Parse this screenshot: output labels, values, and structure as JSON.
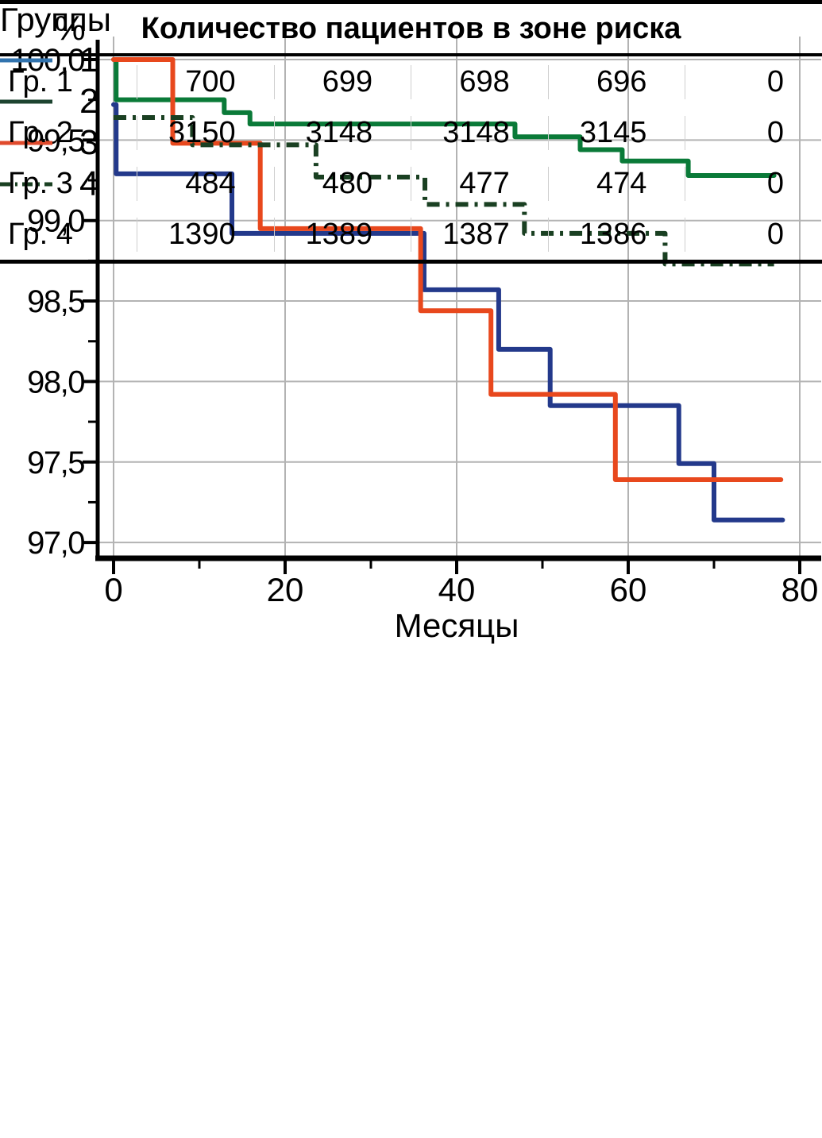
{
  "chart": {
    "ylabel_symbol": "%",
    "xlabel": "Месяцы",
    "x_ticks": [
      {
        "v": 0,
        "label": "0"
      },
      {
        "v": 20,
        "label": "20"
      },
      {
        "v": 40,
        "label": "40"
      },
      {
        "v": 60,
        "label": "60"
      },
      {
        "v": 80,
        "label": "80"
      }
    ],
    "x_minor": [
      10,
      30,
      50,
      70
    ],
    "y_ticks": [
      {
        "v": 100.0,
        "label": "100,0"
      },
      {
        "v": 99.5,
        "label": "99,5"
      },
      {
        "v": 99.0,
        "label": "99,0"
      },
      {
        "v": 98.5,
        "label": "98,5"
      },
      {
        "v": 98.0,
        "label": "98,0"
      },
      {
        "v": 97.5,
        "label": "97,5"
      },
      {
        "v": 97.0,
        "label": "97,0"
      }
    ],
    "y_minor": [
      99.75,
      99.25,
      98.75,
      98.25,
      97.75,
      97.25
    ],
    "grid_color": "#b3b3b3",
    "axis_color": "#000000"
  },
  "chart_data": {
    "type": "line",
    "subtype": "step-survival",
    "title": "",
    "xlabel": "Месяцы",
    "ylabel": "%",
    "xlim": [
      0,
      80
    ],
    "ylim": [
      97.0,
      100.0
    ],
    "grid": true,
    "legend_position": "bottom-left",
    "series": [
      {
        "name": "1",
        "color": "#23398B",
        "legend_color": "#3173AE",
        "style": "solid",
        "points": [
          [
            0,
            99.72
          ],
          [
            0.3,
            99.29
          ],
          [
            13.8,
            98.92
          ],
          [
            36.2,
            98.57
          ],
          [
            44.9,
            98.2
          ],
          [
            50.9,
            97.85
          ],
          [
            65.9,
            97.49
          ],
          [
            70.0,
            97.14
          ],
          [
            78.0,
            97.14
          ]
        ]
      },
      {
        "name": "2",
        "color": "#0A7A38",
        "legend_color": "#1D4430",
        "style": "solid",
        "points": [
          [
            0,
            100.0
          ],
          [
            0.3,
            99.75
          ],
          [
            12.9,
            99.67
          ],
          [
            15.9,
            99.6
          ],
          [
            46.8,
            99.52
          ],
          [
            54.4,
            99.44
          ],
          [
            59.3,
            99.37
          ],
          [
            67.0,
            99.28
          ],
          [
            77.0,
            99.28
          ]
        ]
      },
      {
        "name": "3",
        "color": "#E8481D",
        "legend_color": "#E04A2C",
        "style": "solid",
        "points": [
          [
            0,
            100.0
          ],
          [
            6.9,
            99.48
          ],
          [
            17.1,
            98.95
          ],
          [
            35.8,
            98.44
          ],
          [
            44.0,
            97.92
          ],
          [
            58.5,
            97.39
          ],
          [
            77.8,
            97.39
          ]
        ]
      },
      {
        "name": "4",
        "color": "#1A4022",
        "legend_color": "#1A4022",
        "style": "dashdot",
        "points": [
          [
            0,
            99.64
          ],
          [
            9.2,
            99.47
          ],
          [
            23.6,
            99.27
          ],
          [
            36.3,
            99.1
          ],
          [
            47.9,
            98.92
          ],
          [
            64.3,
            98.73
          ],
          [
            77.0,
            98.73
          ]
        ]
      }
    ]
  },
  "legend": {
    "title": "Группы",
    "items": [
      {
        "label": "1"
      },
      {
        "label": "2"
      },
      {
        "label": "3"
      },
      {
        "label": "4"
      }
    ]
  },
  "risk_table": {
    "title": "Количество пациентов в зоне риска",
    "rows": [
      {
        "label": "Гр. 1",
        "values": [
          "700",
          "699",
          "698",
          "696",
          "0"
        ]
      },
      {
        "label": "Гр. 2",
        "values": [
          "3150",
          "3148",
          "3148",
          "3145",
          "0"
        ]
      },
      {
        "label": "Гр. 3",
        "values": [
          "484",
          "480",
          "477",
          "474",
          "0"
        ]
      },
      {
        "label": "Гр. 4",
        "values": [
          "1390",
          "1389",
          "1387",
          "1386",
          "0"
        ]
      }
    ]
  }
}
